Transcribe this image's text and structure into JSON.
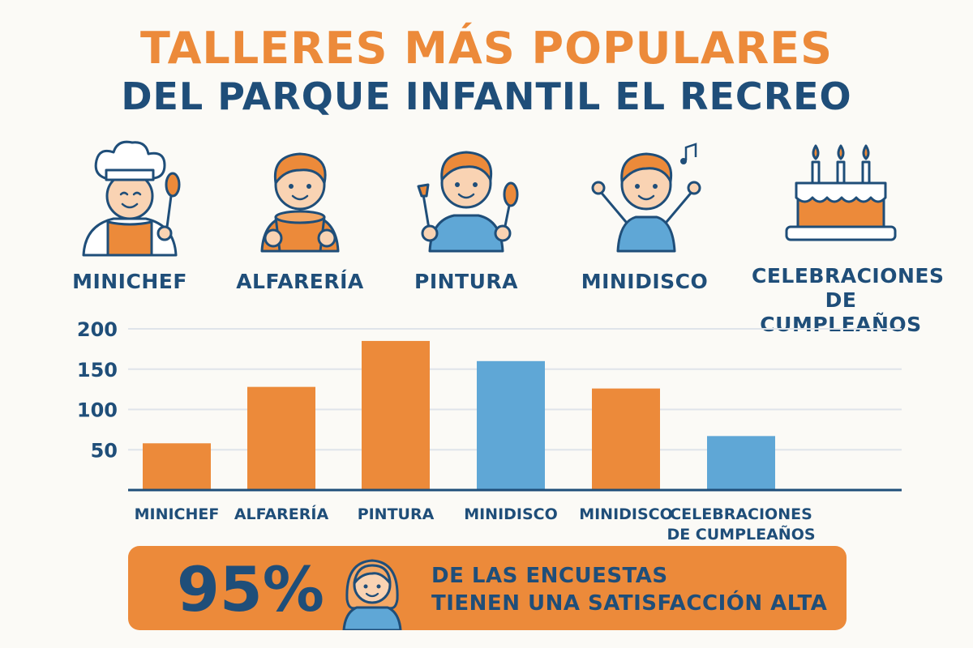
{
  "title": "TALLERES MÁS POPULARES",
  "subtitle": "DEL PARQUE INFANTIL EL RECREO",
  "colors": {
    "orange": "#ec8a3a",
    "blue": "#5fa7d6",
    "navy": "#1f4e79",
    "skin": "#f9d3b3"
  },
  "icons": [
    {
      "label": "MINICHEF",
      "icon": "chef-child-icon"
    },
    {
      "label": "ALFARERÍA",
      "icon": "pottery-child-icon"
    },
    {
      "label": "PINTURA",
      "icon": "painting-child-icon"
    },
    {
      "label": "MINIDISCO",
      "icon": "dancing-child-icon"
    },
    {
      "label_lines": [
        "CELEBRACIONES",
        "DE CUMPLEAÑOS"
      ],
      "icon": "birthday-cake-icon"
    }
  ],
  "chart_data": {
    "type": "bar",
    "categories": [
      "MINICHEF",
      "ALFARERÍA",
      "PINTURA",
      "MINIDISCO",
      "MINIDISCO",
      "CELEBRACIONES DE CUMPLEAÑOS"
    ],
    "category_lines": [
      [
        "MINICHEF"
      ],
      [
        "ALFARERÍA"
      ],
      [
        "PINTURA"
      ],
      [
        "MINIDISCO"
      ],
      [
        "MINIDISCO"
      ],
      [
        "CELEBRACIONES",
        "DE CUMPLEAÑOS"
      ]
    ],
    "values": [
      58,
      128,
      185,
      160,
      126,
      67
    ],
    "bar_colors": [
      "#ec8a3a",
      "#ec8a3a",
      "#ec8a3a",
      "#5fa7d6",
      "#ec8a3a",
      "#5fa7d6"
    ],
    "yticks": [
      50,
      100,
      150,
      200
    ],
    "ylim": [
      0,
      200
    ],
    "grid": true,
    "title": "",
    "xlabel": "",
    "ylabel": ""
  },
  "banner": {
    "percent": "95%",
    "line1": "DE LAS ENCUESTAS",
    "line2": "TIENEN UNA SATISFACCIÓN ALTA",
    "icon": "girl-avatar-icon"
  }
}
